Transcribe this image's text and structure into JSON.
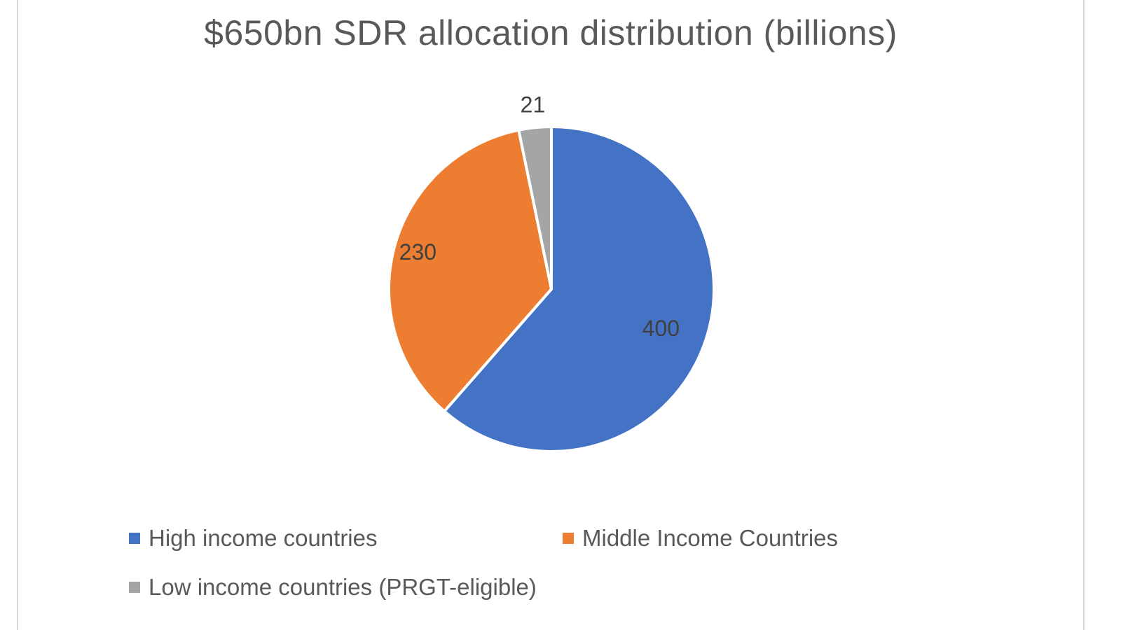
{
  "chart_data": {
    "type": "pie",
    "title": "$650bn SDR allocation distribution (billions)",
    "categories": [
      "High income countries",
      "Middle Income Countries",
      "Low income countries (PRGT-eligible)"
    ],
    "values": [
      400,
      230,
      21
    ],
    "data_labels": [
      "400",
      "230",
      "21"
    ],
    "colors": [
      "#4472c4",
      "#ed7d31",
      "#a5a5a5"
    ],
    "legend_position": "bottom"
  }
}
